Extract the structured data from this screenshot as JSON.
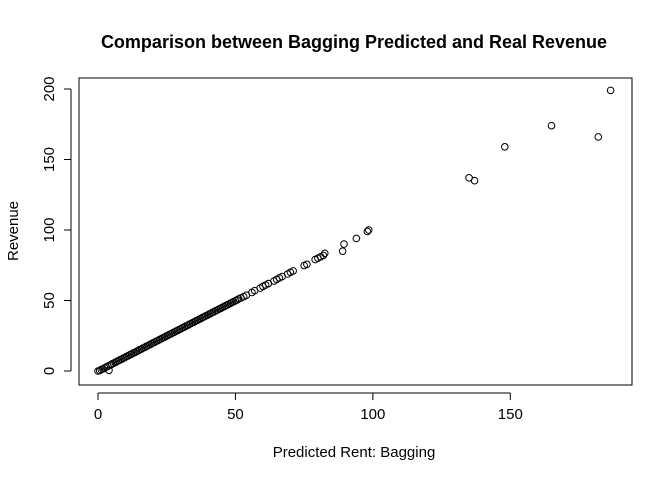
{
  "chart_data": {
    "type": "scatter",
    "title": "Comparison between Bagging Predicted and Real Revenue",
    "xlabel": "Predicted  Rent: Bagging",
    "ylabel": "Revenue",
    "xlim": [
      0,
      187
    ],
    "ylim": [
      0,
      200
    ],
    "xticks": [
      0,
      50,
      100,
      150
    ],
    "yticks": [
      0,
      50,
      100,
      150,
      200
    ],
    "grid": false,
    "legend": "none",
    "points": [
      {
        "x": 0,
        "y": 0
      },
      {
        "x": 0.6,
        "y": 0.3
      },
      {
        "x": 1.2,
        "y": 1
      },
      {
        "x": 1.8,
        "y": 1.5
      },
      {
        "x": 2.4,
        "y": 2.2
      },
      {
        "x": 3,
        "y": 2.8
      },
      {
        "x": 3.6,
        "y": 3.4
      },
      {
        "x": 4,
        "y": 0.5
      },
      {
        "x": 4.5,
        "y": 4.3
      },
      {
        "x": 5,
        "y": 4.8
      },
      {
        "x": 5.6,
        "y": 5.5
      },
      {
        "x": 6.2,
        "y": 6
      },
      {
        "x": 6.8,
        "y": 6.7
      },
      {
        "x": 7.4,
        "y": 7.2
      },
      {
        "x": 8,
        "y": 7.9
      },
      {
        "x": 8.6,
        "y": 8.4
      },
      {
        "x": 9.2,
        "y": 9.1
      },
      {
        "x": 9.8,
        "y": 9.6
      },
      {
        "x": 10.4,
        "y": 10.3
      },
      {
        "x": 11,
        "y": 10.8
      },
      {
        "x": 11.6,
        "y": 11.5
      },
      {
        "x": 12.2,
        "y": 12
      },
      {
        "x": 12.8,
        "y": 12.7
      },
      {
        "x": 13.4,
        "y": 13.2
      },
      {
        "x": 14,
        "y": 13.9
      },
      {
        "x": 14.6,
        "y": 14.4
      },
      {
        "x": 15.2,
        "y": 15.1
      },
      {
        "x": 15.8,
        "y": 15.6
      },
      {
        "x": 16.4,
        "y": 16.3
      },
      {
        "x": 17,
        "y": 16.8
      },
      {
        "x": 17.6,
        "y": 17.5
      },
      {
        "x": 18.2,
        "y": 18
      },
      {
        "x": 18.8,
        "y": 18.7
      },
      {
        "x": 19.4,
        "y": 19.2
      },
      {
        "x": 20,
        "y": 19.9
      },
      {
        "x": 20.6,
        "y": 20.4
      },
      {
        "x": 21.2,
        "y": 21.1
      },
      {
        "x": 21.8,
        "y": 21.6
      },
      {
        "x": 22.4,
        "y": 22.3
      },
      {
        "x": 23,
        "y": 22.8
      },
      {
        "x": 23.6,
        "y": 23.5
      },
      {
        "x": 24.2,
        "y": 24
      },
      {
        "x": 24.8,
        "y": 24.7
      },
      {
        "x": 25.4,
        "y": 25.2
      },
      {
        "x": 26,
        "y": 25.9
      },
      {
        "x": 26.6,
        "y": 26.4
      },
      {
        "x": 27.2,
        "y": 27.1
      },
      {
        "x": 27.8,
        "y": 27.6
      },
      {
        "x": 28.4,
        "y": 28.3
      },
      {
        "x": 29,
        "y": 28.8
      },
      {
        "x": 29.6,
        "y": 29.5
      },
      {
        "x": 30.2,
        "y": 30
      },
      {
        "x": 30.8,
        "y": 30.7
      },
      {
        "x": 31.4,
        "y": 31.2
      },
      {
        "x": 32,
        "y": 31.9
      },
      {
        "x": 32.6,
        "y": 32.4
      },
      {
        "x": 33.2,
        "y": 33.1
      },
      {
        "x": 33.8,
        "y": 33.6
      },
      {
        "x": 34.4,
        "y": 34.3
      },
      {
        "x": 35,
        "y": 34.8
      },
      {
        "x": 35.6,
        "y": 35.5
      },
      {
        "x": 36.2,
        "y": 36
      },
      {
        "x": 36.8,
        "y": 36.7
      },
      {
        "x": 37.4,
        "y": 37.2
      },
      {
        "x": 38,
        "y": 37.9
      },
      {
        "x": 38.6,
        "y": 38.4
      },
      {
        "x": 39.2,
        "y": 39.1
      },
      {
        "x": 39.8,
        "y": 39.6
      },
      {
        "x": 40.4,
        "y": 40.3
      },
      {
        "x": 41,
        "y": 40.8
      },
      {
        "x": 41.6,
        "y": 41.5
      },
      {
        "x": 42.2,
        "y": 42
      },
      {
        "x": 42.8,
        "y": 42.7
      },
      {
        "x": 43.4,
        "y": 43.2
      },
      {
        "x": 44,
        "y": 43.9
      },
      {
        "x": 44.6,
        "y": 44.4
      },
      {
        "x": 45.2,
        "y": 45.1
      },
      {
        "x": 45.8,
        "y": 45.6
      },
      {
        "x": 46.4,
        "y": 46.3
      },
      {
        "x": 47,
        "y": 46.8
      },
      {
        "x": 47.6,
        "y": 47.5
      },
      {
        "x": 48.2,
        "y": 48
      },
      {
        "x": 48.8,
        "y": 48.7
      },
      {
        "x": 49.4,
        "y": 49.2
      },
      {
        "x": 50,
        "y": 49.9
      },
      {
        "x": 50.6,
        "y": 50.4
      },
      {
        "x": 51.2,
        "y": 51.1
      },
      {
        "x": 52,
        "y": 51.8
      },
      {
        "x": 53,
        "y": 52.7
      },
      {
        "x": 54,
        "y": 53.8
      },
      {
        "x": 56,
        "y": 55.7
      },
      {
        "x": 57,
        "y": 57
      },
      {
        "x": 59,
        "y": 58.8
      },
      {
        "x": 60,
        "y": 60
      },
      {
        "x": 61,
        "y": 61
      },
      {
        "x": 62,
        "y": 62
      },
      {
        "x": 64,
        "y": 63.8
      },
      {
        "x": 65,
        "y": 64.9
      },
      {
        "x": 66,
        "y": 66
      },
      {
        "x": 67,
        "y": 67
      },
      {
        "x": 69,
        "y": 68.8
      },
      {
        "x": 70,
        "y": 70
      },
      {
        "x": 71,
        "y": 71
      },
      {
        "x": 75,
        "y": 74.8
      },
      {
        "x": 76,
        "y": 75.7
      },
      {
        "x": 79,
        "y": 79
      },
      {
        "x": 80,
        "y": 80
      },
      {
        "x": 81,
        "y": 81
      },
      {
        "x": 82,
        "y": 82
      },
      {
        "x": 82.5,
        "y": 83.5
      },
      {
        "x": 89,
        "y": 85
      },
      {
        "x": 89.5,
        "y": 90
      },
      {
        "x": 94,
        "y": 94
      },
      {
        "x": 98,
        "y": 99
      },
      {
        "x": 98.5,
        "y": 100
      },
      {
        "x": 135,
        "y": 137
      },
      {
        "x": 137,
        "y": 135
      },
      {
        "x": 148,
        "y": 159
      },
      {
        "x": 165,
        "y": 174
      },
      {
        "x": 182,
        "y": 166
      },
      {
        "x": 186.5,
        "y": 199
      }
    ]
  }
}
